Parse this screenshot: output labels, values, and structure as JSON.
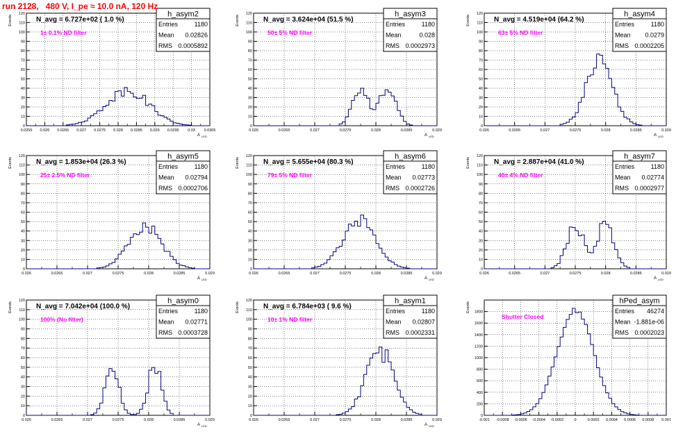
{
  "page": {
    "run_title": "run 2128,   480 V, I_pe ≈ 10.0 nA, 120 Hz"
  },
  "colors": {
    "title": "#ff0000",
    "annotation": "#ff00ff",
    "histogram_line": "#000080",
    "grid": "#000000"
  },
  "chart_data": [
    {
      "type": "bar",
      "name": "h_asym2",
      "stats": {
        "Entries": "1180",
        "Mean": "0.02826",
        "RMS": "0.0005892"
      },
      "navg_text": "N_avg = 6.727e+02 ( 1.0 %)",
      "annotation": "1± 0.1% ND filter",
      "ylabel": "Events",
      "xlabel": "A",
      "xlabel_sub": "LED",
      "xlim": [
        0.0255,
        0.0305
      ],
      "ylim": [
        0,
        120
      ],
      "xtick_values": [
        0.0255,
        0.026,
        0.0265,
        0.027,
        0.0275,
        0.028,
        0.0285,
        0.029,
        0.0295,
        0.03,
        0.0305
      ],
      "xticks": [
        "0.0255",
        "0.026",
        "0.0265",
        "0.027",
        "0.0275",
        "0.028",
        "0.0285",
        "0.029",
        "0.0295",
        "0.03",
        "0.0305"
      ],
      "ytick_values": [
        0,
        10,
        20,
        30,
        40,
        50,
        60,
        70,
        80,
        90,
        100,
        110,
        120
      ],
      "yticks": [
        "0",
        "10",
        "20",
        "30",
        "40",
        "50",
        "60",
        "70",
        "80",
        "90",
        "100",
        "110",
        "120"
      ],
      "peaks": [
        {
          "mu": 0.02826,
          "sigma": 0.00059,
          "amp": 38
        }
      ],
      "grid": true
    },
    {
      "type": "bar",
      "name": "h_asym3",
      "stats": {
        "Entries": "1180",
        "Mean": "0.028",
        "RMS": "0.0002973"
      },
      "navg_text": "N_avg = 3.624e+04 (51.5 %)",
      "annotation": "50± 5% ND filter",
      "ylabel": "Events",
      "xlabel": "A",
      "xlabel_sub": "LED",
      "xlim": [
        0.026,
        0.029
      ],
      "ylim": [
        0,
        120
      ],
      "xtick_values": [
        0.026,
        0.0265,
        0.027,
        0.0275,
        0.028,
        0.0285,
        0.029
      ],
      "xticks": [
        "0.026",
        "0.0265",
        "0.027",
        "0.0275",
        "0.028",
        "0.0285",
        "0.029"
      ],
      "ytick_values": [
        0,
        10,
        20,
        30,
        40,
        50,
        60,
        70,
        80,
        90,
        100,
        110,
        120
      ],
      "yticks": [
        "0",
        "10",
        "20",
        "30",
        "40",
        "50",
        "60",
        "70",
        "80",
        "90",
        "100",
        "110",
        "120"
      ],
      "peaks": [
        {
          "mu": 0.02775,
          "sigma": 0.00013,
          "amp": 40
        },
        {
          "mu": 0.0282,
          "sigma": 0.00013,
          "amp": 42
        }
      ],
      "grid": true
    },
    {
      "type": "bar",
      "name": "h_asym4",
      "stats": {
        "Entries": "1180",
        "Mean": "0.0279",
        "RMS": "0.0002205"
      },
      "navg_text": "N_avg = 4.519e+04 (64.2 %)",
      "annotation": "63± 5% ND filter",
      "ylabel": "Events",
      "xlabel": "A",
      "xlabel_sub": "LED",
      "xlim": [
        0.026,
        0.029
      ],
      "ylim": [
        0,
        120
      ],
      "xtick_values": [
        0.026,
        0.0265,
        0.027,
        0.0275,
        0.028,
        0.0285,
        0.029
      ],
      "xticks": [
        "0.026",
        "0.0265",
        "0.027",
        "0.0275",
        "0.028",
        "0.0285",
        "0.029"
      ],
      "ytick_values": [
        0,
        10,
        20,
        30,
        40,
        50,
        60,
        70,
        80,
        90,
        100,
        110,
        120
      ],
      "yticks": [
        "0",
        "10",
        "20",
        "30",
        "40",
        "50",
        "60",
        "70",
        "80",
        "90",
        "100",
        "110",
        "120"
      ],
      "peaks": [
        {
          "mu": 0.0279,
          "sigma": 0.00022,
          "amp": 68
        }
      ],
      "grid": true
    },
    {
      "type": "bar",
      "name": "h_asym5",
      "stats": {
        "Entries": "1180",
        "Mean": "0.02794",
        "RMS": "0.0002706"
      },
      "navg_text": "N_avg = 1.853e+04 (26.3 %)",
      "annotation": "25± 2.5% ND filter",
      "ylabel": "Events",
      "xlabel": "A",
      "xlabel_sub": "LED",
      "xlim": [
        0.026,
        0.029
      ],
      "ylim": [
        0,
        120
      ],
      "xtick_values": [
        0.026,
        0.0265,
        0.027,
        0.0275,
        0.028,
        0.0285,
        0.029
      ],
      "xticks": [
        "0.026",
        "0.0265",
        "0.027",
        "0.0275",
        "0.028",
        "0.0285",
        "0.029"
      ],
      "ytick_values": [
        0,
        10,
        20,
        30,
        40,
        50,
        60,
        70,
        80,
        90,
        100,
        110,
        120
      ],
      "yticks": [
        "0",
        "10",
        "20",
        "30",
        "40",
        "50",
        "60",
        "70",
        "80",
        "90",
        "100",
        "110",
        "120"
      ],
      "peaks": [
        {
          "mu": 0.02794,
          "sigma": 0.00027,
          "amp": 45
        }
      ],
      "grid": true
    },
    {
      "type": "bar",
      "name": "h_asym6",
      "stats": {
        "Entries": "1180",
        "Mean": "0.02773",
        "RMS": "0.0002726"
      },
      "navg_text": "N_avg = 5.655e+04 (80.3 %)",
      "annotation": "79± 5% ND filter",
      "ylabel": "Events",
      "xlabel": "A",
      "xlabel_sub": "LED",
      "xlim": [
        0.026,
        0.029
      ],
      "ylim": [
        0,
        120
      ],
      "xtick_values": [
        0.026,
        0.0265,
        0.027,
        0.0275,
        0.028,
        0.0285,
        0.029
      ],
      "xticks": [
        "0.026",
        "0.0265",
        "0.027",
        "0.0275",
        "0.028",
        "0.0285",
        "0.029"
      ],
      "ytick_values": [
        0,
        10,
        20,
        30,
        40,
        50,
        60,
        70,
        80,
        90,
        100,
        110,
        120
      ],
      "yticks": [
        "0",
        "10",
        "20",
        "30",
        "40",
        "50",
        "60",
        "70",
        "80",
        "90",
        "100",
        "110",
        "120"
      ],
      "peaks": [
        {
          "mu": 0.02773,
          "sigma": 0.00027,
          "amp": 52
        }
      ],
      "grid": true
    },
    {
      "type": "bar",
      "name": "h_asym7",
      "stats": {
        "Entries": "1180",
        "Mean": "0.02774",
        "RMS": "0.0002977"
      },
      "navg_text": "N_avg = 2.887e+04 (41.0 %)",
      "annotation": "40± 4% ND filter",
      "ylabel": "Events",
      "xlabel": "A",
      "xlabel_sub": "LED",
      "xlim": [
        0.026,
        0.029
      ],
      "ylim": [
        0,
        120
      ],
      "xtick_values": [
        0.026,
        0.0265,
        0.027,
        0.0275,
        0.028,
        0.0285,
        0.029
      ],
      "xticks": [
        "0.026",
        "0.0265",
        "0.027",
        "0.0275",
        "0.028",
        "0.0285",
        "0.029"
      ],
      "ytick_values": [
        0,
        10,
        20,
        30,
        40,
        50,
        60,
        70,
        80,
        90,
        100,
        110,
        120
      ],
      "yticks": [
        "0",
        "10",
        "20",
        "30",
        "40",
        "50",
        "60",
        "70",
        "80",
        "90",
        "100",
        "110",
        "120"
      ],
      "peaks": [
        {
          "mu": 0.0275,
          "sigma": 0.00014,
          "amp": 45
        },
        {
          "mu": 0.028,
          "sigma": 0.00014,
          "amp": 48
        }
      ],
      "grid": true
    },
    {
      "type": "bar",
      "name": "h_asym0",
      "stats": {
        "Entries": "1180",
        "Mean": "0.02771",
        "RMS": "0.0003728"
      },
      "navg_text": "N_avg = 7.042e+04 (100.0 %)",
      "annotation": "100% (No filter)",
      "ylabel": "Events",
      "xlabel": "A",
      "xlabel_sub": "LED",
      "xlim": [
        0.026,
        0.029
      ],
      "ylim": [
        0,
        120
      ],
      "xtick_values": [
        0.026,
        0.0265,
        0.027,
        0.0275,
        0.028,
        0.0285,
        0.029
      ],
      "xticks": [
        "0.026",
        "0.0265",
        "0.027",
        "0.0275",
        "0.028",
        "0.0285",
        "0.029"
      ],
      "ytick_values": [
        0,
        10,
        20,
        30,
        40,
        50,
        60,
        70,
        80,
        90,
        100,
        110,
        120
      ],
      "yticks": [
        "0",
        "10",
        "20",
        "30",
        "40",
        "50",
        "60",
        "70",
        "80",
        "90",
        "100",
        "110",
        "120"
      ],
      "peaks": [
        {
          "mu": 0.0274,
          "sigma": 0.00011,
          "amp": 52
        },
        {
          "mu": 0.0281,
          "sigma": 0.00011,
          "amp": 52
        }
      ],
      "grid": true
    },
    {
      "type": "bar",
      "name": "h_asym1",
      "stats": {
        "Entries": "1180",
        "Mean": "0.02807",
        "RMS": "0.0002331"
      },
      "navg_text": "N_avg = 6.784e+03 ( 9.6 %)",
      "annotation": "10± 1% ND filter",
      "ylabel": "Events",
      "xlabel": "A",
      "xlabel_sub": "LED",
      "xlim": [
        0.026,
        0.029
      ],
      "ylim": [
        0,
        120
      ],
      "xtick_values": [
        0.026,
        0.0265,
        0.027,
        0.0275,
        0.028,
        0.0285,
        0.029
      ],
      "xticks": [
        "0.026",
        "0.0265",
        "0.027",
        "0.0275",
        "0.028",
        "0.0285",
        "0.029"
      ],
      "ytick_values": [
        0,
        10,
        20,
        30,
        40,
        50,
        60,
        70,
        80,
        90,
        100,
        110,
        120
      ],
      "yticks": [
        "0",
        "10",
        "20",
        "30",
        "40",
        "50",
        "60",
        "70",
        "80",
        "90",
        "100",
        "110",
        "120"
      ],
      "peaks": [
        {
          "mu": 0.02807,
          "sigma": 0.00023,
          "amp": 66
        }
      ],
      "grid": true
    },
    {
      "type": "bar",
      "name": "hPed_asym",
      "stats": {
        "Entries": "46274",
        "Mean": "-1.881e-06",
        "RMS": "0.0002023"
      },
      "navg_text": "",
      "annotation": "Shutter Closed",
      "ylabel": "Events",
      "xlabel": "",
      "xlabel_sub": "",
      "xlim": [
        -0.001,
        0.001
      ],
      "ylim": [
        0,
        2000
      ],
      "xtick_values": [
        -0.001,
        -0.0008,
        -0.0006,
        -0.0004,
        -0.0002,
        0,
        0.0002,
        0.0004,
        0.0006,
        0.0008,
        0.001
      ],
      "xticks": [
        "-0.001",
        "-0.0008",
        "-0.0006",
        "-0.0004",
        "-0.0002",
        "0",
        "0.0002",
        "0.0004",
        "0.0006",
        "0.0008",
        "0.001"
      ],
      "ytick_values": [
        0,
        200,
        400,
        600,
        800,
        1000,
        1200,
        1400,
        1600,
        1800
      ],
      "yticks": [
        "0",
        "200",
        "400",
        "600",
        "800",
        "1000",
        "1200",
        "1400",
        "1600",
        "1800"
      ],
      "peaks": [
        {
          "mu": 0.0,
          "sigma": 0.0002,
          "amp": 1830
        }
      ],
      "grid": true
    }
  ]
}
